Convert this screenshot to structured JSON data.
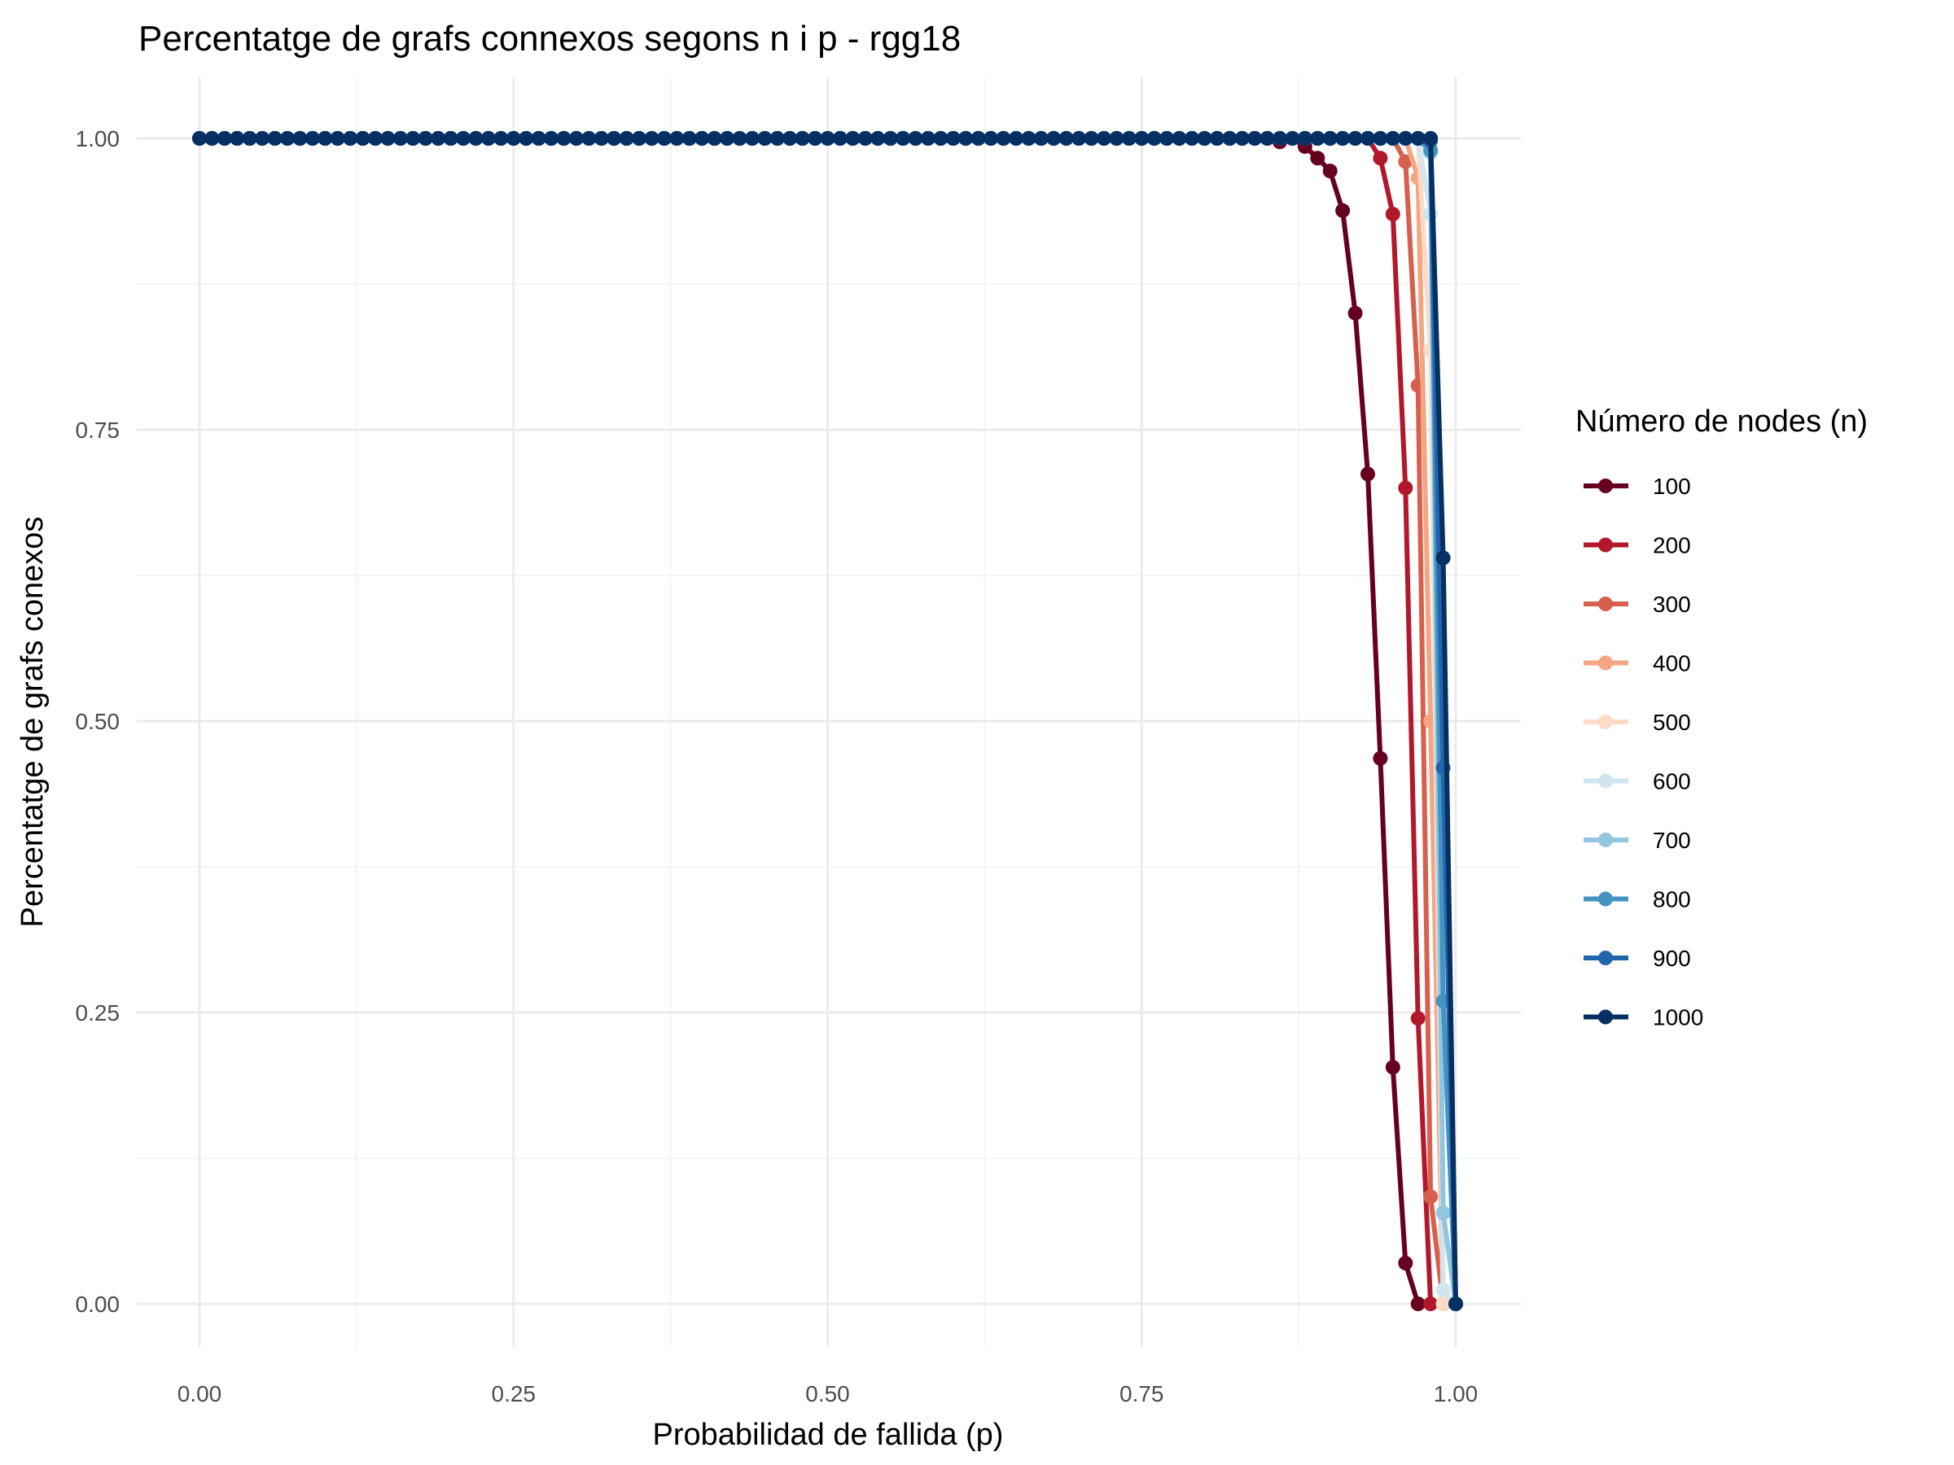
{
  "chart_data": {
    "type": "line",
    "title": "Percentatge de grafs connexos segons n i p - rgg18",
    "xlabel": "Probabilidad de fallida (p)",
    "ylabel": "Percentatge de grafs conexos",
    "xlim": [
      -0.05,
      1.03
    ],
    "ylim": [
      -0.05,
      1.05
    ],
    "x_ticks": [
      0,
      0.25,
      0.5,
      0.75,
      1
    ],
    "x_tick_labels": [
      "0.00",
      "0.25",
      "0.50",
      "0.75",
      "1.00"
    ],
    "y_ticks": [
      0,
      0.25,
      0.5,
      0.75,
      1
    ],
    "y_tick_labels": [
      "0.00",
      "0.25",
      "0.50",
      "0.75",
      "1.00"
    ],
    "grid": true,
    "legend_title": "Número de nodes (n)",
    "legend_position": "right",
    "series": [
      {
        "name": "100",
        "color": "#67001f",
        "tail": [
          [
            0.86,
            0.997
          ],
          [
            0.87,
            1.0
          ],
          [
            0.88,
            0.993
          ],
          [
            0.89,
            0.983
          ],
          [
            0.9,
            0.972
          ],
          [
            0.91,
            0.938
          ],
          [
            0.92,
            0.85
          ],
          [
            0.93,
            0.712
          ],
          [
            0.94,
            0.468
          ],
          [
            0.95,
            0.203
          ],
          [
            0.96,
            0.035
          ],
          [
            0.97,
            0.0
          ]
        ]
      },
      {
        "name": "200",
        "color": "#b2182b",
        "tail": [
          [
            0.93,
            1.0
          ],
          [
            0.94,
            0.983
          ],
          [
            0.95,
            0.935
          ],
          [
            0.96,
            0.7
          ],
          [
            0.97,
            0.245
          ],
          [
            0.98,
            0.0
          ]
        ]
      },
      {
        "name": "300",
        "color": "#d6604d",
        "tail": [
          [
            0.95,
            1.0
          ],
          [
            0.96,
            0.98
          ],
          [
            0.97,
            0.788
          ],
          [
            0.98,
            0.092
          ],
          [
            0.99,
            0.0
          ]
        ]
      },
      {
        "name": "400",
        "color": "#f4a582",
        "tail": [
          [
            0.96,
            1.0
          ],
          [
            0.97,
            0.966
          ],
          [
            0.98,
            0.5
          ],
          [
            0.99,
            0.0
          ]
        ]
      },
      {
        "name": "500",
        "color": "#fddbc7",
        "tail": [
          [
            0.97,
            1.0
          ],
          [
            0.98,
            0.818
          ],
          [
            0.99,
            0.0
          ]
        ]
      },
      {
        "name": "600",
        "color": "#d1e5f0",
        "tail": [
          [
            0.97,
            1.0
          ],
          [
            0.98,
            0.935
          ],
          [
            0.99,
            0.012
          ],
          [
            1.0,
            0.0
          ]
        ]
      },
      {
        "name": "700",
        "color": "#92c5de",
        "tail": [
          [
            0.97,
            1.0
          ],
          [
            0.98,
            0.988
          ],
          [
            0.99,
            0.078
          ],
          [
            1.0,
            0.0
          ]
        ]
      },
      {
        "name": "800",
        "color": "#4393c3",
        "tail": [
          [
            0.98,
            0.99
          ],
          [
            0.99,
            0.26
          ],
          [
            1.0,
            0.0
          ]
        ]
      },
      {
        "name": "900",
        "color": "#2166ac",
        "tail": [
          [
            0.98,
            0.998
          ],
          [
            0.99,
            0.46
          ],
          [
            1.0,
            0.0
          ]
        ]
      },
      {
        "name": "1000",
        "color": "#053061",
        "tail": [
          [
            0.98,
            1.0
          ],
          [
            0.99,
            0.64
          ],
          [
            1.0,
            0.0
          ]
        ]
      }
    ]
  }
}
